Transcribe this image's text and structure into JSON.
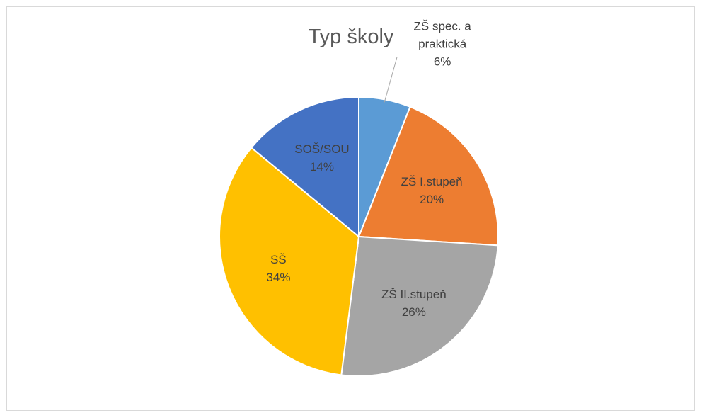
{
  "chart_data": {
    "type": "pie",
    "title": "Typ školy",
    "categories": [
      "ZŠ spec. a praktická",
      "ZŠ I.stupeň",
      "ZŠ II.stupeň",
      "SŠ",
      "SOŠ/SOU"
    ],
    "values": [
      6,
      20,
      26,
      34,
      14
    ],
    "value_labels": [
      "6%",
      "20%",
      "26%",
      "34%",
      "14%"
    ],
    "colors": [
      "#5b9bd5",
      "#ed7d31",
      "#a5a5a5",
      "#ffc000",
      "#4472c4"
    ]
  }
}
